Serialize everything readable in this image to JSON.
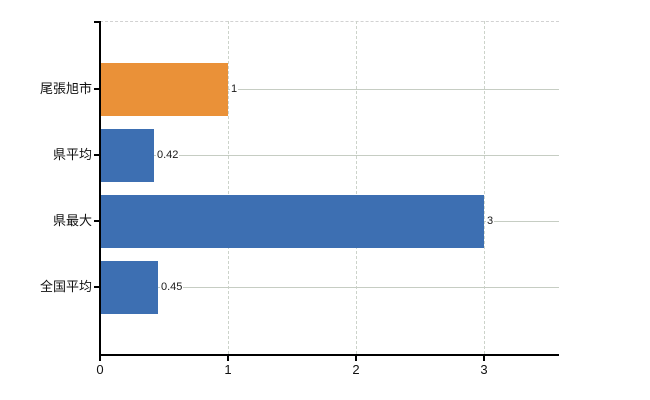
{
  "chart_data": {
    "type": "bar",
    "orientation": "horizontal",
    "title": "",
    "xlabel": "",
    "ylabel": "",
    "categories": [
      "尾張旭市",
      "県平均",
      "県最大",
      "全国平均"
    ],
    "values": [
      1,
      0.42,
      3,
      0.45
    ],
    "value_labels": [
      "1",
      "0.42",
      "3",
      "0.45"
    ],
    "bar_colors": [
      "#ea9138",
      "#3d6fb2",
      "#3d6fb2",
      "#3d6fb2"
    ],
    "highlight_category": "尾張旭市",
    "x_ticks": [
      0,
      1,
      2,
      3
    ],
    "x_tick_labels": [
      "0",
      "1",
      "2",
      "3"
    ],
    "xlim": [
      0,
      3.59
    ],
    "grid": true,
    "legend": false,
    "colors": {
      "accent_orange": "#ea9138",
      "series_blue": "#3d6fb2",
      "axis": "#000000",
      "gridline": "#c6cdc3",
      "dashed_gridline": "#ccd3ca",
      "top_border": "#d2d2d2",
      "label_text": "#111111",
      "background": "#ffffff"
    }
  }
}
